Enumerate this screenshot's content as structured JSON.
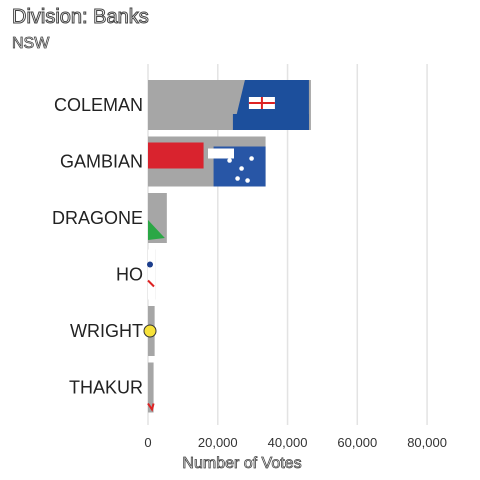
{
  "title": "Division: Banks",
  "subtitle": "NSW",
  "chart_data": {
    "type": "bar",
    "orientation": "horizontal",
    "categories": [
      "COLEMAN",
      "GAMBIAN",
      "DRAGONE",
      "HO",
      "WRIGHT",
      "THAKUR"
    ],
    "values": [
      46700,
      33700,
      5400,
      2200,
      1900,
      1600
    ],
    "party_logos": [
      "Liberal",
      "Labor",
      "Greens",
      "Christian Democrats",
      "Sustainable Australia",
      "Other"
    ],
    "xlabel": "Number of Votes",
    "ylabel": "",
    "xlim": [
      0,
      88000
    ],
    "xticks": [
      0,
      20000,
      40000,
      60000,
      80000
    ],
    "xtick_labels": [
      "0",
      "20,000",
      "40,000",
      "60,000",
      "80,000"
    ],
    "grid": "vertical",
    "bar_color": "#a6a6a6"
  }
}
